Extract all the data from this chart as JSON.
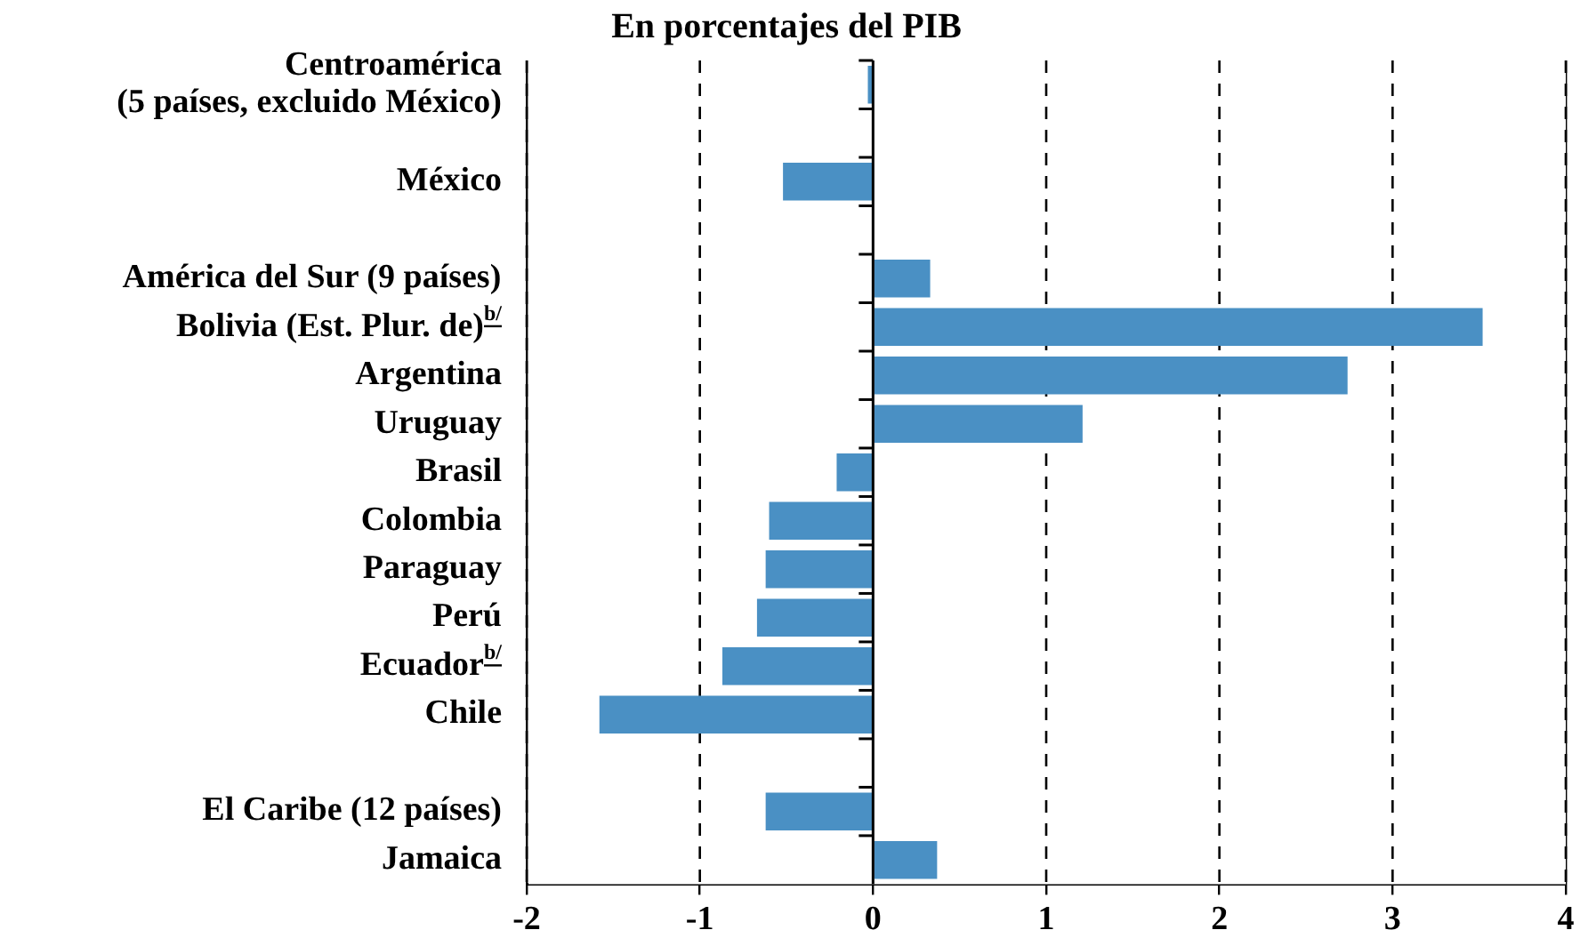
{
  "chart_data": {
    "type": "bar",
    "orientation": "horizontal",
    "title": "En porcentajes del PIB",
    "categories": [
      "Centroamérica\n(5 países, excluido México)",
      null,
      "México",
      null,
      "América del Sur (9 países)",
      "Bolivia (Est. Plur. de)$^{b/}$",
      "Argentina",
      "Uruguay",
      "Brasil",
      "Colombia",
      "Paraguay",
      "Perú",
      "Ecuador$^{b/}$",
      "Chile",
      null,
      "El Caribe (12 países)",
      "Jamaica"
    ],
    "values": [
      -0.03,
      null,
      -0.52,
      null,
      0.33,
      3.52,
      2.74,
      1.21,
      -0.21,
      -0.6,
      -0.62,
      -0.67,
      -0.87,
      -1.58,
      null,
      -0.62,
      0.37
    ],
    "color": "#4a90c4",
    "xlim": [
      -2,
      4
    ],
    "xticks": [
      -2,
      -1,
      0,
      1,
      2,
      3,
      4
    ],
    "grid": "x"
  }
}
